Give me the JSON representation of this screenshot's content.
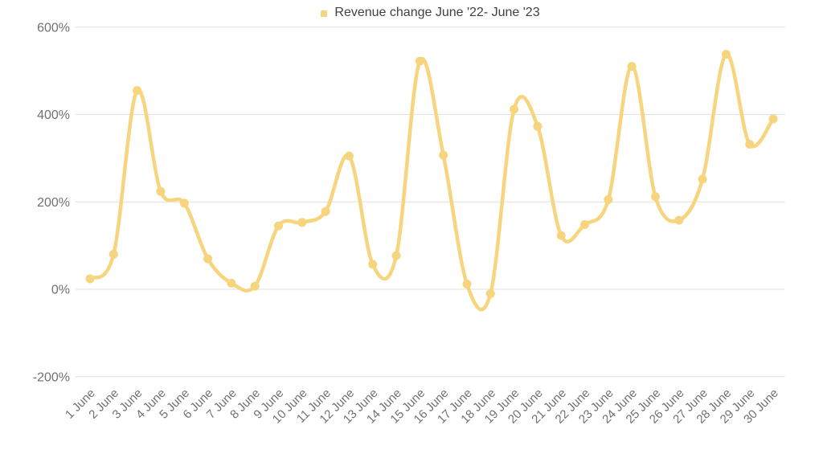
{
  "legend": {
    "label": "Revenue change June '22- June '23"
  },
  "style": {
    "series_color": "#F7D57E",
    "grid_color": "#E1E1E1",
    "axis_text_color": "#707070",
    "legend_text_color": "#414141",
    "background_color": "#FFFFFF",
    "line_width": 4.5,
    "marker_radius": 5.5
  },
  "chart_data": {
    "type": "line",
    "title": "Revenue change June '22- June '23",
    "xlabel": "",
    "ylabel": "",
    "ylim": [
      -200,
      600
    ],
    "grid": true,
    "legend_position": "top-center",
    "smooth": true,
    "markers": true,
    "yticks": [
      {
        "value": 600,
        "label": "600%"
      },
      {
        "value": 400,
        "label": "400%"
      },
      {
        "value": 200,
        "label": "200%"
      },
      {
        "value": 0,
        "label": "0%"
      },
      {
        "value": -200,
        "label": "-200%"
      }
    ],
    "categories": [
      "1 June",
      "2 June",
      "3 June",
      "4 June",
      "5 June",
      "6 June",
      "7 June",
      "8 June",
      "9 June",
      "10 June",
      "11 June",
      "12 June",
      "13 June",
      "14 June",
      "15 June",
      "16 June",
      "17 June",
      "18 June",
      "19 June",
      "20 June",
      "21 June",
      "22 June",
      "23 June",
      "24 June",
      "25 June",
      "26 June",
      "27 June",
      "28 June",
      "29 June",
      "30 June"
    ],
    "series": [
      {
        "name": "Revenue change June '22- June '23",
        "values": [
          24,
          80,
          455,
          224,
          197,
          70,
          14,
          7,
          145,
          153,
          178,
          305,
          57,
          77,
          522,
          307,
          12,
          -10,
          412,
          373,
          123,
          148,
          205,
          510,
          212,
          158,
          252,
          538,
          332,
          390
        ]
      }
    ]
  }
}
